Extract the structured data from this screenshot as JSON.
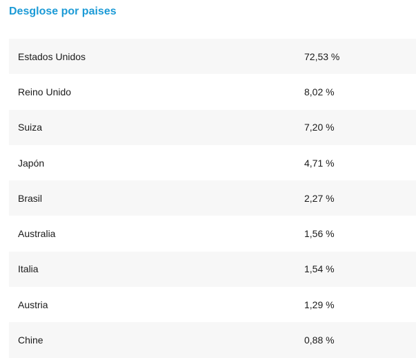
{
  "section": {
    "title": "Desglose por paises",
    "rows": [
      {
        "country": "Estados Unidos",
        "percent": "72,53 %"
      },
      {
        "country": "Reino Unido",
        "percent": "8,02 %"
      },
      {
        "country": "Suiza",
        "percent": "7,20 %"
      },
      {
        "country": "Japón",
        "percent": "4,71 %"
      },
      {
        "country": "Brasil",
        "percent": "2,27 %"
      },
      {
        "country": "Australia",
        "percent": "1,56 %"
      },
      {
        "country": "Italia",
        "percent": "1,54 %"
      },
      {
        "country": "Austria",
        "percent": "1,29 %"
      },
      {
        "country": "Chine",
        "percent": "0,88 %"
      }
    ]
  },
  "colors": {
    "title": "#1b9ad6",
    "row_alt": "#f7f7f7",
    "text": "#1a1a1a"
  }
}
